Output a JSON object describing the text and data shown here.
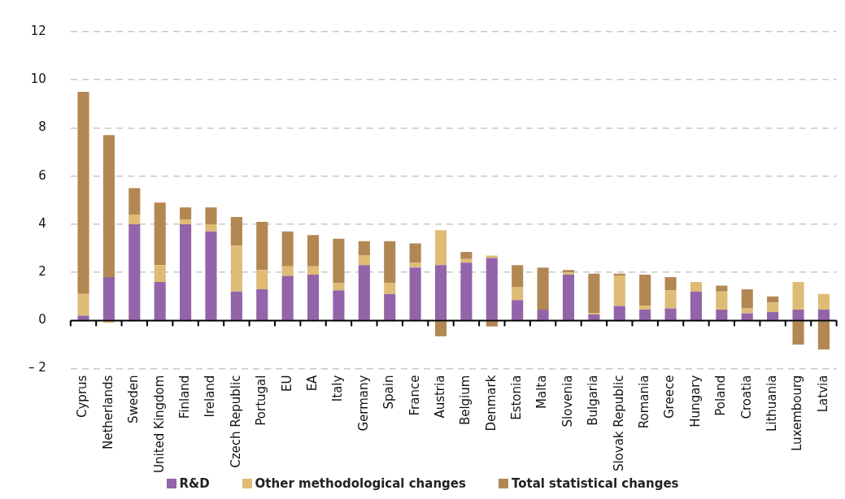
{
  "chart_data": {
    "type": "bar",
    "stacked": true,
    "categories": [
      "Cyprus",
      "Netherlands",
      "Sweden",
      "United Kingdom",
      "Finland",
      "Ireland",
      "Czech Republic",
      "Portugal",
      "EU",
      "EA",
      "Italy",
      "Germany",
      "Spain",
      "France",
      "Austria",
      "Belgium",
      "Denmark",
      "Estonia",
      "Malta",
      "Slovenia",
      "Bulgaria",
      "Slovak Republic",
      "Romania",
      "Greece",
      "Hungary",
      "Poland",
      "Croatia",
      "Lithuania",
      "Luxembourg",
      "Latvia"
    ],
    "series": [
      {
        "name": "R&D",
        "color": "#9264aa",
        "values": [
          0.2,
          1.8,
          4.0,
          1.6,
          4.0,
          3.7,
          1.2,
          1.3,
          1.85,
          1.9,
          1.25,
          2.3,
          1.1,
          2.2,
          2.3,
          2.4,
          2.6,
          0.85,
          0.45,
          1.9,
          0.25,
          0.6,
          0.45,
          0.5,
          1.2,
          0.45,
          0.3,
          0.35,
          0.45,
          0.45
        ]
      },
      {
        "name": "Other methodological changes",
        "color": "#dfbc76",
        "values": [
          0.9,
          -0.1,
          0.4,
          0.7,
          0.2,
          0.3,
          1.9,
          0.8,
          0.4,
          0.35,
          0.3,
          0.4,
          0.45,
          0.2,
          1.45,
          0.15,
          0.1,
          0.55,
          0,
          0.1,
          0.05,
          1.25,
          0.15,
          0.75,
          0.4,
          0.75,
          0.2,
          0.4,
          1.15,
          0.65
        ]
      },
      {
        "name": "Total statistical changes",
        "color": "#b38753",
        "values": [
          8.4,
          5.9,
          1.1,
          2.6,
          0.5,
          0.7,
          1.2,
          2.0,
          1.45,
          1.3,
          1.85,
          0.6,
          1.75,
          0.8,
          -0.65,
          0.3,
          -0.25,
          0.9,
          1.75,
          0.1,
          1.65,
          0.1,
          1.3,
          0.55,
          0,
          0.25,
          0.8,
          0.25,
          -1.0,
          -1.2
        ]
      }
    ],
    "ylim": [
      -2,
      12
    ],
    "yticks": [
      {
        "value": -2,
        "label": "– 2"
      },
      0,
      2,
      4,
      6,
      8,
      10,
      12
    ],
    "grid": "y",
    "legend": "bottom"
  }
}
